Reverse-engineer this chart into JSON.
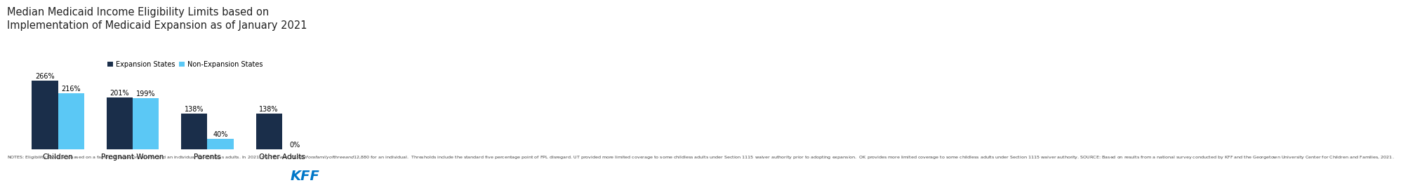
{
  "title_line1": "Median Medicaid Income Eligibility Limits based on",
  "title_line2": "Implementation of Medicaid Expansion as of January 2021",
  "categories": [
    "Children",
    "Pregnant Women",
    "Parents",
    "Other Adults"
  ],
  "expansion_values": [
    266,
    201,
    138,
    138
  ],
  "nonexpansion_values": [
    216,
    199,
    40,
    0
  ],
  "expansion_color": "#1a2e4a",
  "nonexpansion_color": "#5bc8f5",
  "expansion_label": "Expansion States",
  "nonexpansion_label": "Non-Expansion States",
  "ylim": [
    0,
    310
  ],
  "bar_width": 0.35,
  "background_color": "#ffffff",
  "notes": "NOTES: Eligibility levels are based on a family of three for parents and an individual for childless adults. In 2021, the FPL was $21,960 for a family of three and $12,880 for an individual.  Thresholds include the standard five percentage point of FPL disregard. UT provided more limited coverage to some childless adults under Section 1115 waiver authority prior to adopting expansion.  OK provides more limited coverage to some childless adults under Section 1115 waiver authority. SOURCE: Based on results from a national survey conducted by KFF and the Georgetown University Center for Children and Families, 2021.",
  "kff_color": "#0077c8",
  "title_fontsize": 10.5,
  "legend_fontsize": 7.0,
  "notes_fontsize": 4.6,
  "category_fontsize": 7.5,
  "value_fontsize": 7.0,
  "kff_fontsize": 14
}
